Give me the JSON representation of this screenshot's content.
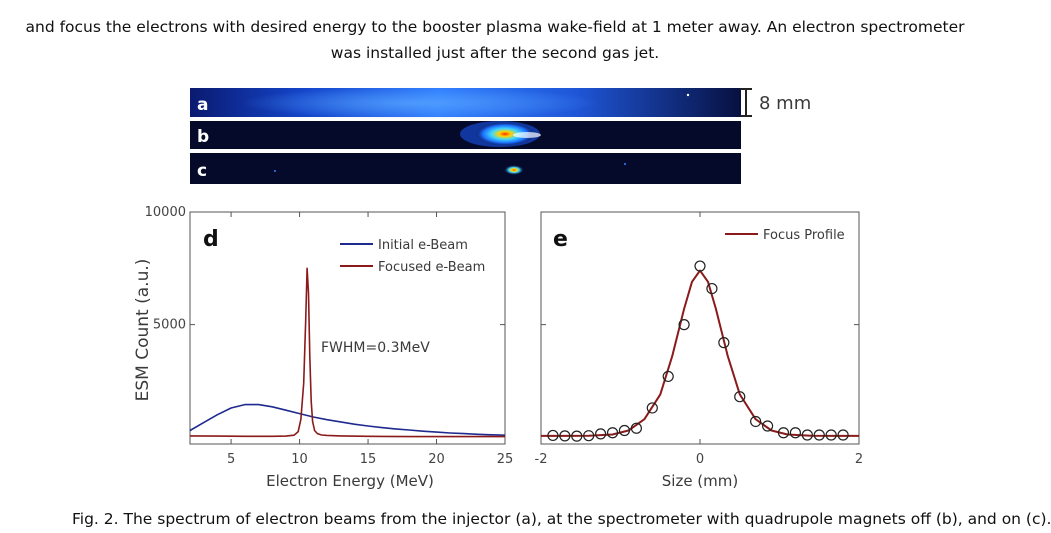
{
  "caption": {
    "top_line1": "and focus the electrons with desired energy to the booster plasma wake-field at 1 meter away. An electron spectrometer",
    "top_line2": "was installed just after the second gas jet.",
    "bottom_partial": "Fig. 2. The spectrum of electron beams from the injector (a), at the spectrometer with quadrupole magnets off (b), and on (c)."
  },
  "images": {
    "strips": [
      {
        "letter": "a"
      },
      {
        "letter": "b"
      },
      {
        "letter": "c"
      }
    ],
    "scale_label": "8 mm"
  },
  "colors": {
    "initial": "#1f2a8f",
    "focused": "#8b1a1a",
    "profile": "#8b1a1a",
    "axis": "#555555"
  },
  "chart_data": [
    {
      "type": "line",
      "panel": "d",
      "title": "",
      "xlabel": "Electron Energy (MeV)",
      "ylabel": "ESM Count (a.u.)",
      "xlim": [
        2,
        25
      ],
      "ylim": [
        -300,
        10000
      ],
      "xticks": [
        5,
        10,
        15,
        20,
        25
      ],
      "xtick_labels": [
        "5",
        "10",
        "15",
        "20",
        "25"
      ],
      "yticks": [
        5000,
        10000
      ],
      "ytick_labels": [
        "5000",
        "10000"
      ],
      "legend": "top-right",
      "grid": false,
      "annotation": "FWHM=0.3MeV",
      "series": [
        {
          "name": "Initial e-Beam",
          "x": [
            2,
            3,
            4,
            5,
            6,
            7,
            8,
            9,
            10,
            11,
            12,
            13,
            14,
            15,
            16,
            17,
            18,
            19,
            20,
            21,
            22,
            23,
            24,
            25
          ],
          "values": [
            300,
            650,
            1000,
            1300,
            1450,
            1450,
            1350,
            1200,
            1050,
            900,
            780,
            680,
            580,
            500,
            430,
            370,
            320,
            270,
            230,
            190,
            160,
            130,
            110,
            90
          ]
        },
        {
          "name": "Focused e-Beam",
          "x": [
            2,
            4,
            6,
            8,
            9,
            9.6,
            9.9,
            10.1,
            10.3,
            10.45,
            10.55,
            10.65,
            10.75,
            10.85,
            10.95,
            11.1,
            11.3,
            11.6,
            12,
            13,
            15,
            18,
            21,
            25
          ],
          "values": [
            60,
            50,
            40,
            40,
            50,
            90,
            250,
            800,
            2400,
            5200,
            7500,
            6400,
            3600,
            1600,
            700,
            300,
            160,
            100,
            80,
            60,
            40,
            30,
            30,
            30
          ]
        }
      ]
    },
    {
      "type": "line",
      "panel": "e",
      "title": "",
      "xlabel": "Size (mm)",
      "ylabel": "",
      "xlim": [
        -2,
        2
      ],
      "ylim": [
        -300,
        10000
      ],
      "xticks": [
        -2,
        0,
        2
      ],
      "xtick_labels": [
        "-2",
        "0",
        "2"
      ],
      "legend": "top-right",
      "grid": false,
      "series": [
        {
          "name": "Focus Profile",
          "x": [
            -2.0,
            -1.7,
            -1.4,
            -1.1,
            -0.9,
            -0.7,
            -0.5,
            -0.35,
            -0.2,
            -0.1,
            0.0,
            0.1,
            0.2,
            0.35,
            0.5,
            0.7,
            0.9,
            1.1,
            1.4,
            1.7,
            2.0
          ],
          "values": [
            60,
            60,
            70,
            120,
            300,
            800,
            1900,
            3600,
            5700,
            6900,
            7400,
            6900,
            5700,
            3600,
            1900,
            800,
            300,
            120,
            70,
            60,
            60
          ]
        },
        {
          "name": "",
          "style": "markers",
          "x": [
            -1.85,
            -1.7,
            -1.55,
            -1.4,
            -1.25,
            -1.1,
            -0.95,
            -0.8,
            -0.6,
            -0.4,
            -0.2,
            0.0,
            0.15,
            0.3,
            0.5,
            0.7,
            0.85,
            1.05,
            1.2,
            1.35,
            1.5,
            1.65,
            1.8
          ],
          "values": [
            80,
            60,
            50,
            70,
            150,
            200,
            300,
            400,
            1300,
            2700,
            5000,
            7600,
            6600,
            4200,
            1800,
            700,
            500,
            200,
            200,
            100,
            100,
            100,
            100
          ]
        }
      ]
    }
  ]
}
